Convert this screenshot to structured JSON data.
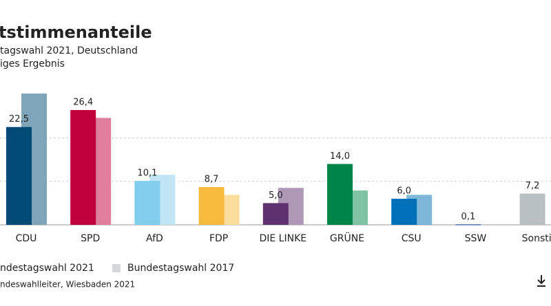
{
  "chart_data": {
    "type": "bar",
    "title": "tstimmenanteile",
    "subtitle": [
      "tagswahl 2021, Deutschland",
      "iges Ergebnis"
    ],
    "categories": [
      "CDU",
      "SPD",
      "AfD",
      "FDP",
      "DIE LINKE",
      "GRÜNE",
      "CSU",
      "SSW",
      "Sonstig"
    ],
    "series": [
      {
        "name": "ndestagswahl 2021",
        "values": [
          22.5,
          26.4,
          10.1,
          8.7,
          5.0,
          14.0,
          6.0,
          0.1,
          7.2
        ],
        "value_labels": [
          "22,5",
          "26,4",
          "10,1",
          "8,7",
          "5,0",
          "14,0",
          "6,0",
          "0,1",
          "7,2"
        ],
        "colors": [
          "#004b76",
          "#c0003c",
          "#80cdec",
          "#f7bb3d",
          "#5f316e",
          "#008549",
          "#0070b8",
          "#003c8f",
          "#b9c0c4"
        ]
      },
      {
        "name": "Bundestagswahl 2017",
        "values": [
          30.2,
          24.6,
          11.5,
          6.9,
          8.5,
          7.9,
          6.9,
          null,
          null
        ],
        "colors": [
          "#7fa5bb",
          "#df7f9d",
          "#c0e6f6",
          "#fbdd9e",
          "#af98b6",
          "#7fc2a4",
          "#7fb7db",
          "#7fa5bb",
          "#dce0e2"
        ],
        "legend_color": "#d5d8da"
      }
    ],
    "ylim": [
      0,
      30.2
    ],
    "yticks": [
      10,
      20
    ],
    "grid": true,
    "source": "ndeswahlleiter, Wiesbaden 2021"
  }
}
